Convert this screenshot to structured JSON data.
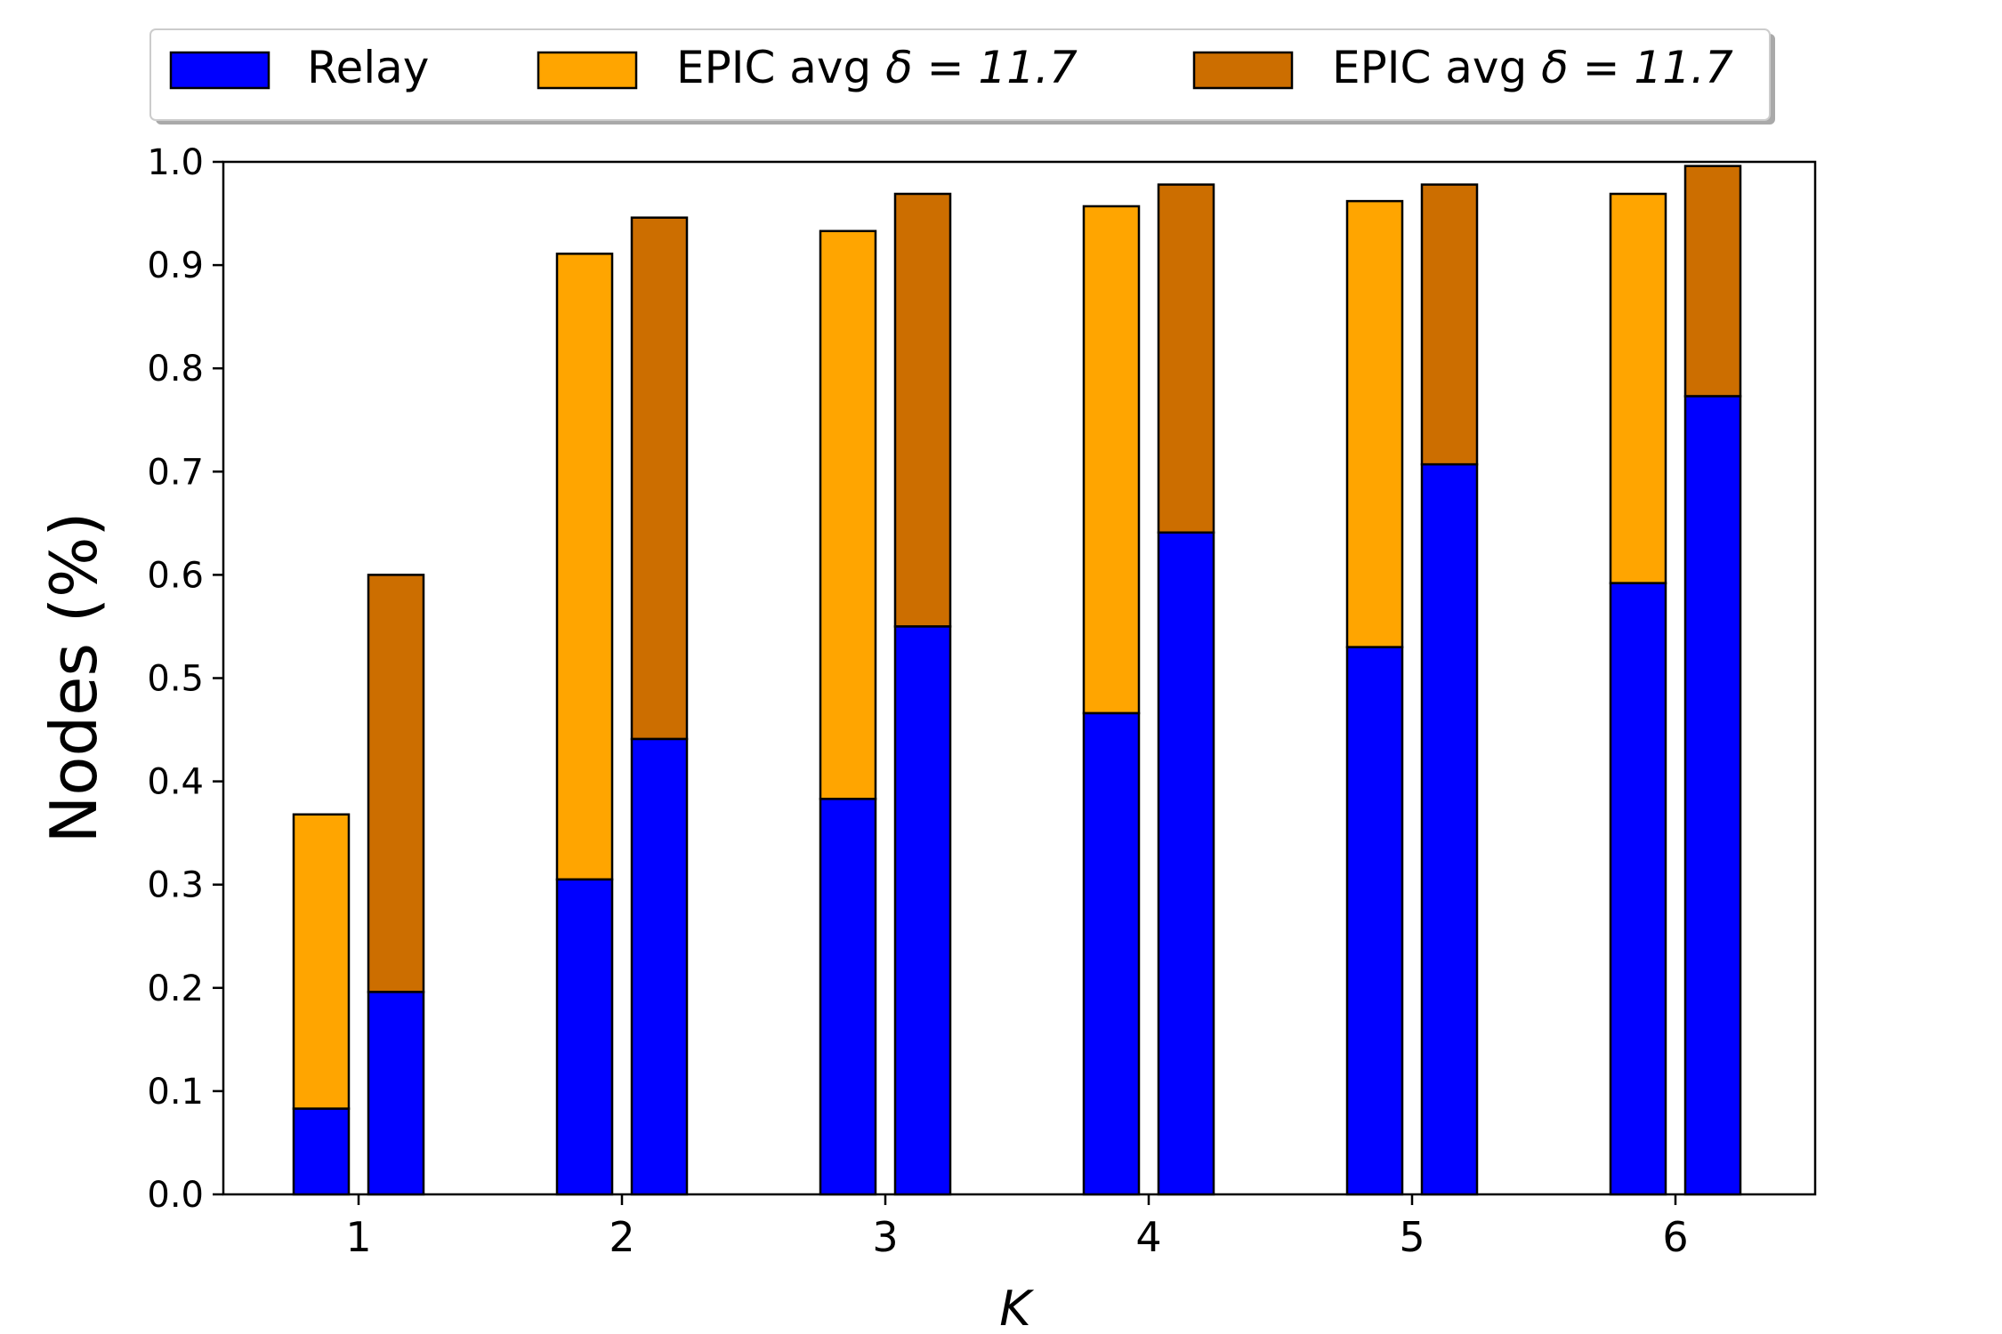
{
  "chart_data": {
    "type": "bar",
    "stacked_grouped": true,
    "categories": [
      "1",
      "2",
      "3",
      "4",
      "5",
      "6"
    ],
    "xlabel": "K",
    "ylabel": "Nodes (%)",
    "ylim": [
      0,
      1.0
    ],
    "yticks": [
      "0.0",
      "0.1",
      "0.2",
      "0.3",
      "0.4",
      "0.5",
      "0.6",
      "0.7",
      "0.8",
      "0.9",
      "1.0"
    ],
    "legend_position": "top-center",
    "grid": false,
    "legend": [
      {
        "label_prefix": "Relay",
        "label_math": "",
        "color": "#0000ff"
      },
      {
        "label_prefix": "EPIC avg ",
        "label_math": "δ = 11.7",
        "color": "#ffa500"
      },
      {
        "label_prefix": "EPIC avg ",
        "label_math": "δ = 11.7",
        "color": "#cc6e00"
      }
    ],
    "groups": [
      {
        "name": "left-bars",
        "relay_values": [
          0.083,
          0.305,
          0.383,
          0.466,
          0.53,
          0.592
        ],
        "total_values": [
          0.368,
          0.911,
          0.933,
          0.957,
          0.962,
          0.969
        ],
        "relay_color": "#0000ff",
        "epic_color": "#ffa500"
      },
      {
        "name": "right-bars",
        "relay_values": [
          0.196,
          0.441,
          0.55,
          0.641,
          0.707,
          0.773
        ],
        "total_values": [
          0.6,
          0.946,
          0.969,
          0.978,
          0.978,
          0.996
        ],
        "relay_color": "#0000ff",
        "epic_color": "#cc6e00"
      }
    ]
  }
}
